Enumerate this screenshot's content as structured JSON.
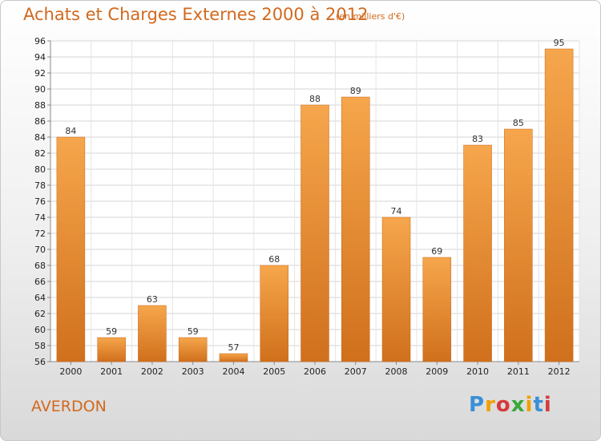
{
  "title": "Achats et Charges Externes 2000 à 2012",
  "unit": "(en milliers d'€)",
  "place": "AVERDON",
  "logo": {
    "text": "Proxiti",
    "colors": [
      "#3a8fd6",
      "#f0a000",
      "#d63a3a",
      "#3aa83a",
      "#f0a000",
      "#3a8fd6",
      "#d63a3a"
    ]
  },
  "colors": {
    "bar_top": "#f6a64c",
    "bar_bottom": "#d0701c",
    "accent": "#d2691e"
  },
  "chart_data": {
    "type": "bar",
    "categories": [
      "2000",
      "2001",
      "2002",
      "2003",
      "2004",
      "2005",
      "2006",
      "2007",
      "2008",
      "2009",
      "2010",
      "2011",
      "2012"
    ],
    "values": [
      84,
      59,
      63,
      59,
      57,
      68,
      88,
      89,
      74,
      69,
      83,
      85,
      95
    ],
    "ylim": [
      56,
      96
    ],
    "ytick_step": 2,
    "grid": true,
    "xlabel": "",
    "ylabel": ""
  }
}
